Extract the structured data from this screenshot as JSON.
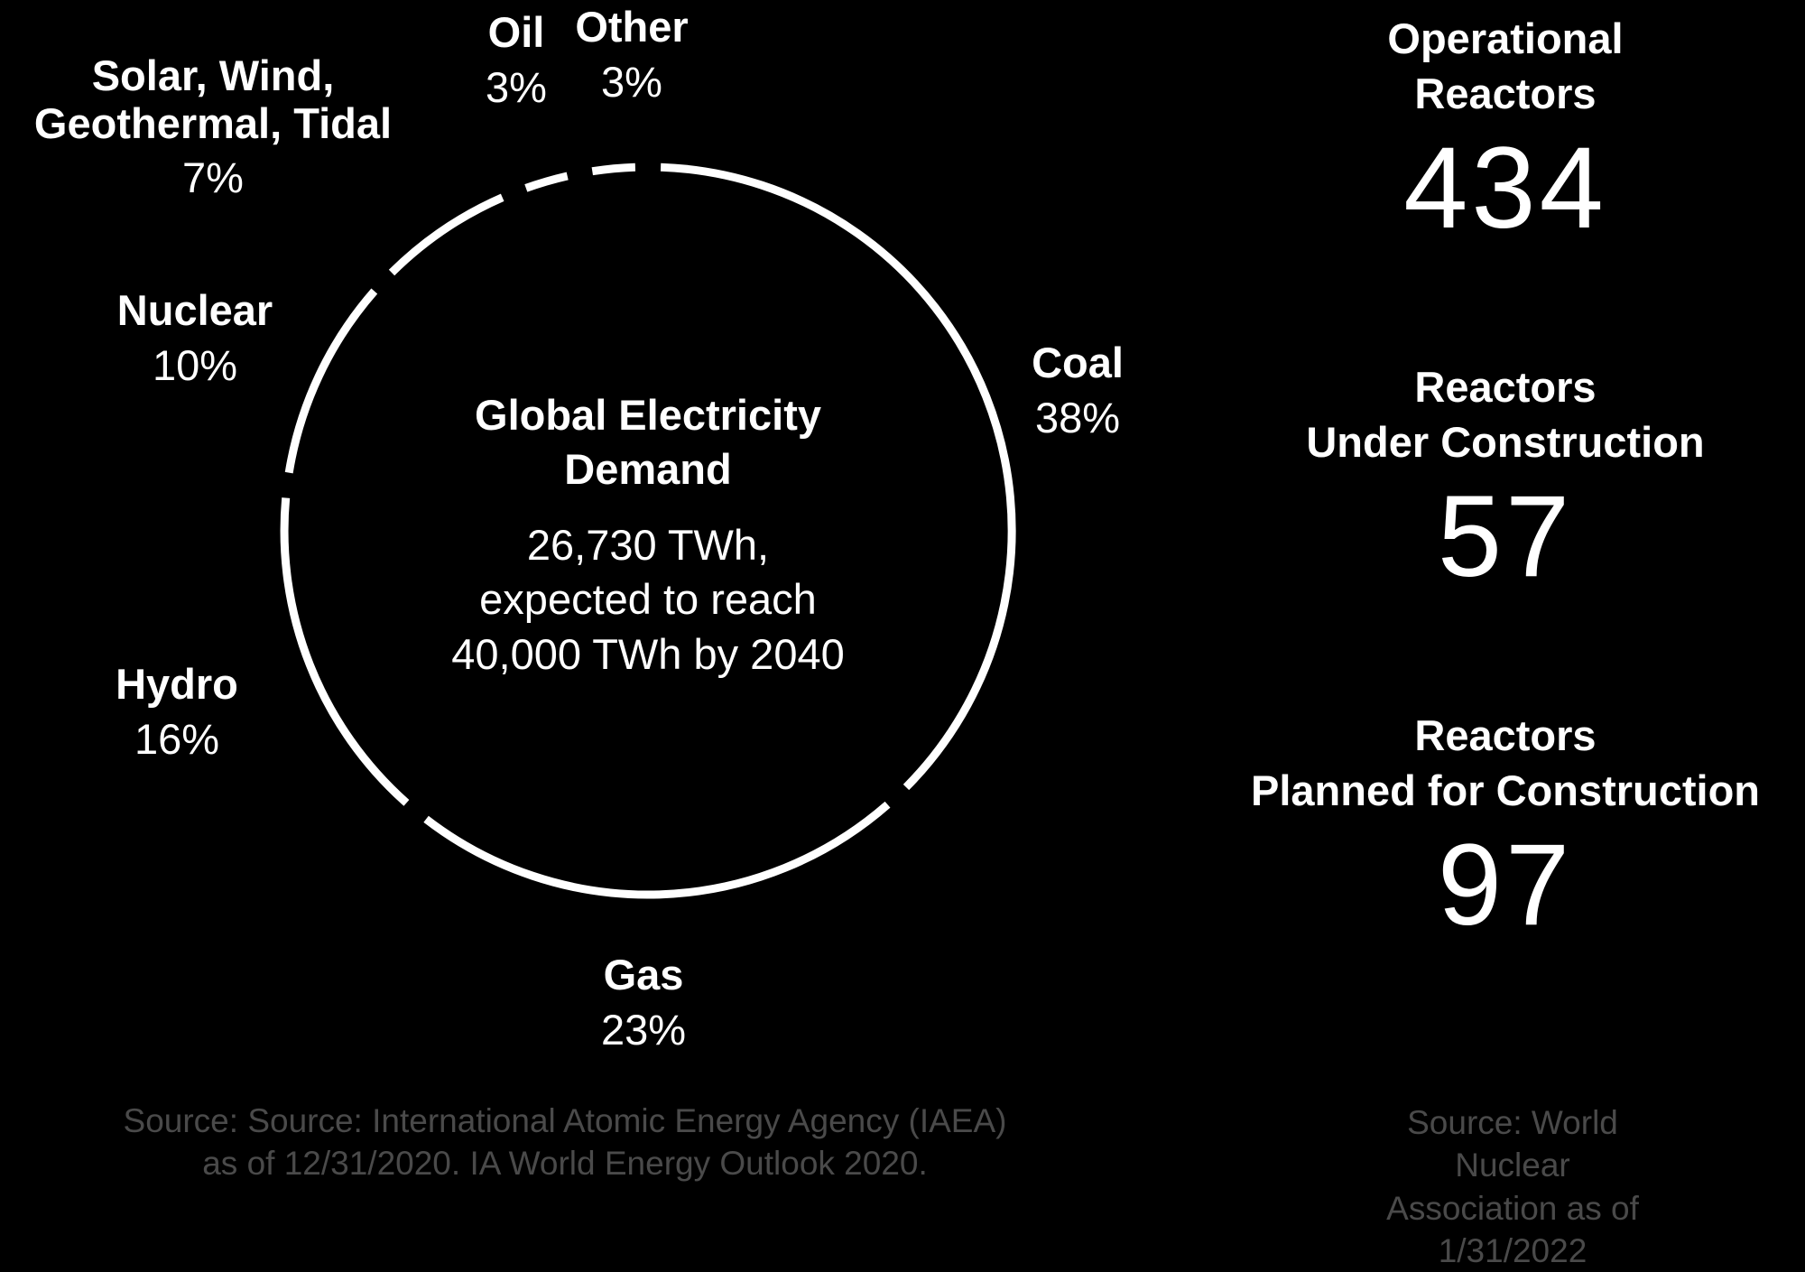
{
  "chart_data": {
    "type": "pie",
    "title": "Global Electricity Demand",
    "subtitle": "26,730 TWh,\nexpected to reach\n40,000 TWh by 2040",
    "slices": [
      {
        "label": "Coal",
        "value": 38,
        "display": "38%"
      },
      {
        "label": "Gas",
        "value": 23,
        "display": "23%"
      },
      {
        "label": "Hydro",
        "value": 16,
        "display": "16%"
      },
      {
        "label": "Nuclear",
        "value": 10,
        "display": "10%"
      },
      {
        "label": "Solar, Wind, Geothermal, Tidal",
        "value": 7,
        "display": "7%"
      },
      {
        "label": "Oil",
        "value": 3,
        "display": "3%"
      },
      {
        "label": "Other",
        "value": 3,
        "display": "3%"
      }
    ],
    "colors": {
      "ring": "#ffffff",
      "background": "#000000"
    }
  },
  "labels": {
    "coal": {
      "name": "Coal",
      "pct": "38%"
    },
    "gas": {
      "name": "Gas",
      "pct": "23%"
    },
    "hydro": {
      "name": "Hydro",
      "pct": "16%"
    },
    "nuclear": {
      "name": "Nuclear",
      "pct": "10%"
    },
    "renewables": {
      "name": "Solar, Wind,\nGeothermal, Tidal",
      "pct": "7%"
    },
    "oil": {
      "name": "Oil",
      "pct": "3%"
    },
    "other": {
      "name": "Other",
      "pct": "3%"
    }
  },
  "center": {
    "title": "Global Electricity\nDemand",
    "text": "26,730 TWh,\nexpected to reach\n40,000 TWh by 2040"
  },
  "left_source": "Source: Source: International Atomic Energy Agency (IAEA)\nas of 12/31/2020. IA World Energy Outlook 2020.",
  "stats": [
    {
      "label": "Operational\nReactors",
      "value": "434"
    },
    {
      "label": "Reactors\nUnder Construction",
      "value": "57"
    },
    {
      "label": "Reactors\nPlanned for Construction",
      "value": "97"
    }
  ],
  "right_source": "Source: World Nuclear\nAssociation as of 1/31/2022"
}
